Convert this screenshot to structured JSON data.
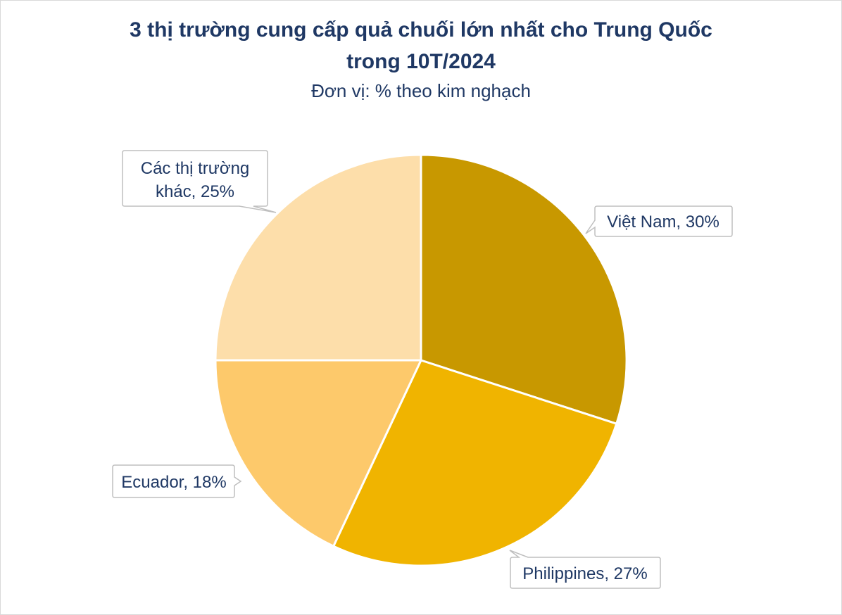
{
  "chart_data": {
    "type": "pie",
    "title": "3 thị trường cung cấp quả chuối lớn nhất cho Trung Quốc",
    "title_line2": "trong 10T/2024",
    "subtitle": "Đơn vị: % theo kim nghạch",
    "slices": [
      {
        "label": "Việt Nam",
        "value": 30,
        "color": "#c89800",
        "data_label": "Việt Nam, 30%"
      },
      {
        "label": "Philippines",
        "value": 27,
        "color": "#f0b400",
        "data_label": "Philippines, 27%"
      },
      {
        "label": "Ecuador",
        "value": 18,
        "color": "#fdc96b",
        "data_label": "Ecuador, 18%"
      },
      {
        "label": "Các thị trường khác",
        "value": 25,
        "color": "#fddeaa",
        "data_label_lines": [
          "Các thị trường",
          "khác, 25%"
        ]
      }
    ]
  }
}
